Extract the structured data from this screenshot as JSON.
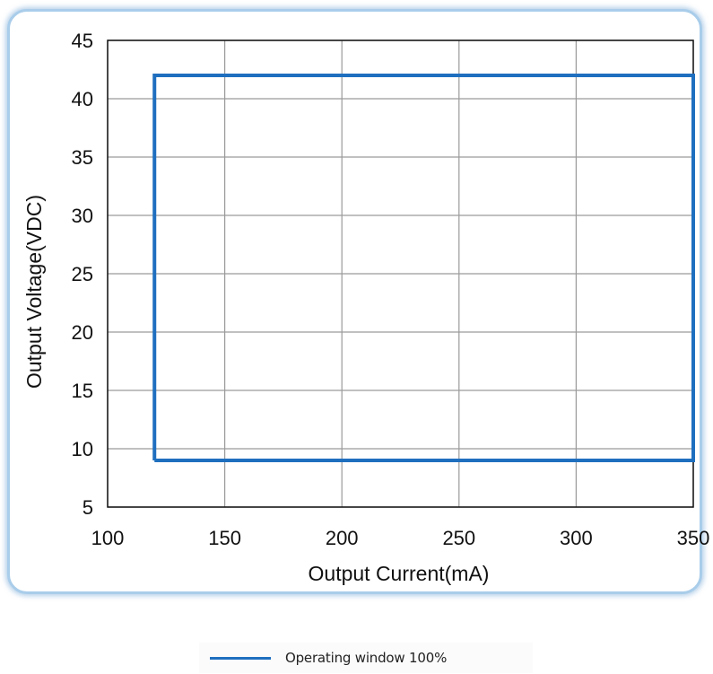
{
  "chart_data": {
    "type": "area",
    "xlabel": "Output Current(mA)",
    "ylabel": "Output Voltage(VDC)",
    "xlim": [
      100,
      350
    ],
    "ylim": [
      5,
      45
    ],
    "x_ticks": [
      "100",
      "150",
      "200",
      "250",
      "300",
      "350"
    ],
    "y_ticks": [
      "5",
      "10",
      "15",
      "20",
      "25",
      "30",
      "35",
      "40",
      "45"
    ],
    "grid": true,
    "legend_position": "bottom-center",
    "series": [
      {
        "name": "Operating window 100%",
        "color": "#1f6fbf",
        "points": [
          {
            "x": 120,
            "y": 9
          },
          {
            "x": 120,
            "y": 42
          },
          {
            "x": 350,
            "y": 42
          },
          {
            "x": 350,
            "y": 9
          },
          {
            "x": 120,
            "y": 9
          }
        ]
      }
    ]
  }
}
